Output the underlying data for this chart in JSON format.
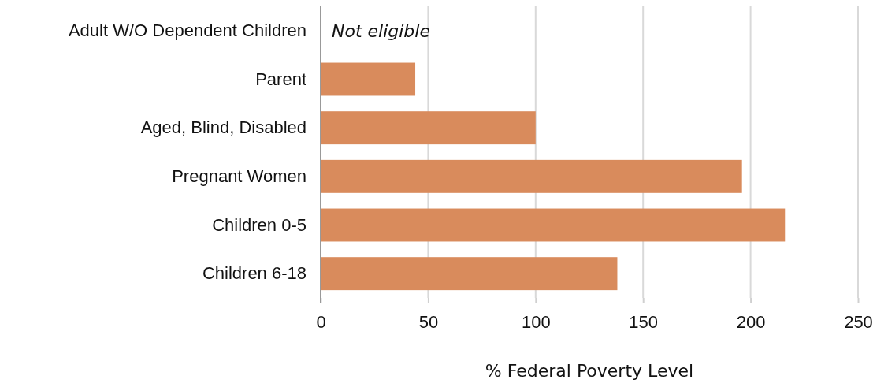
{
  "chart_data": {
    "type": "bar",
    "orientation": "horizontal",
    "xlabel": "% Federal Poverty Level",
    "categories": [
      "Adult W/O Dependent Children",
      "Parent",
      "Aged, Blind, Disabled",
      "Pregnant Women",
      "Children 0-5",
      "Children 6-18"
    ],
    "values": [
      null,
      44,
      100,
      196,
      216,
      138
    ],
    "color": "#d98b5c",
    "xlim": [
      0,
      250
    ],
    "xticks": [
      0,
      50,
      100,
      150,
      200,
      250
    ],
    "grid": "x",
    "annotations": [
      "Not eligible"
    ]
  }
}
